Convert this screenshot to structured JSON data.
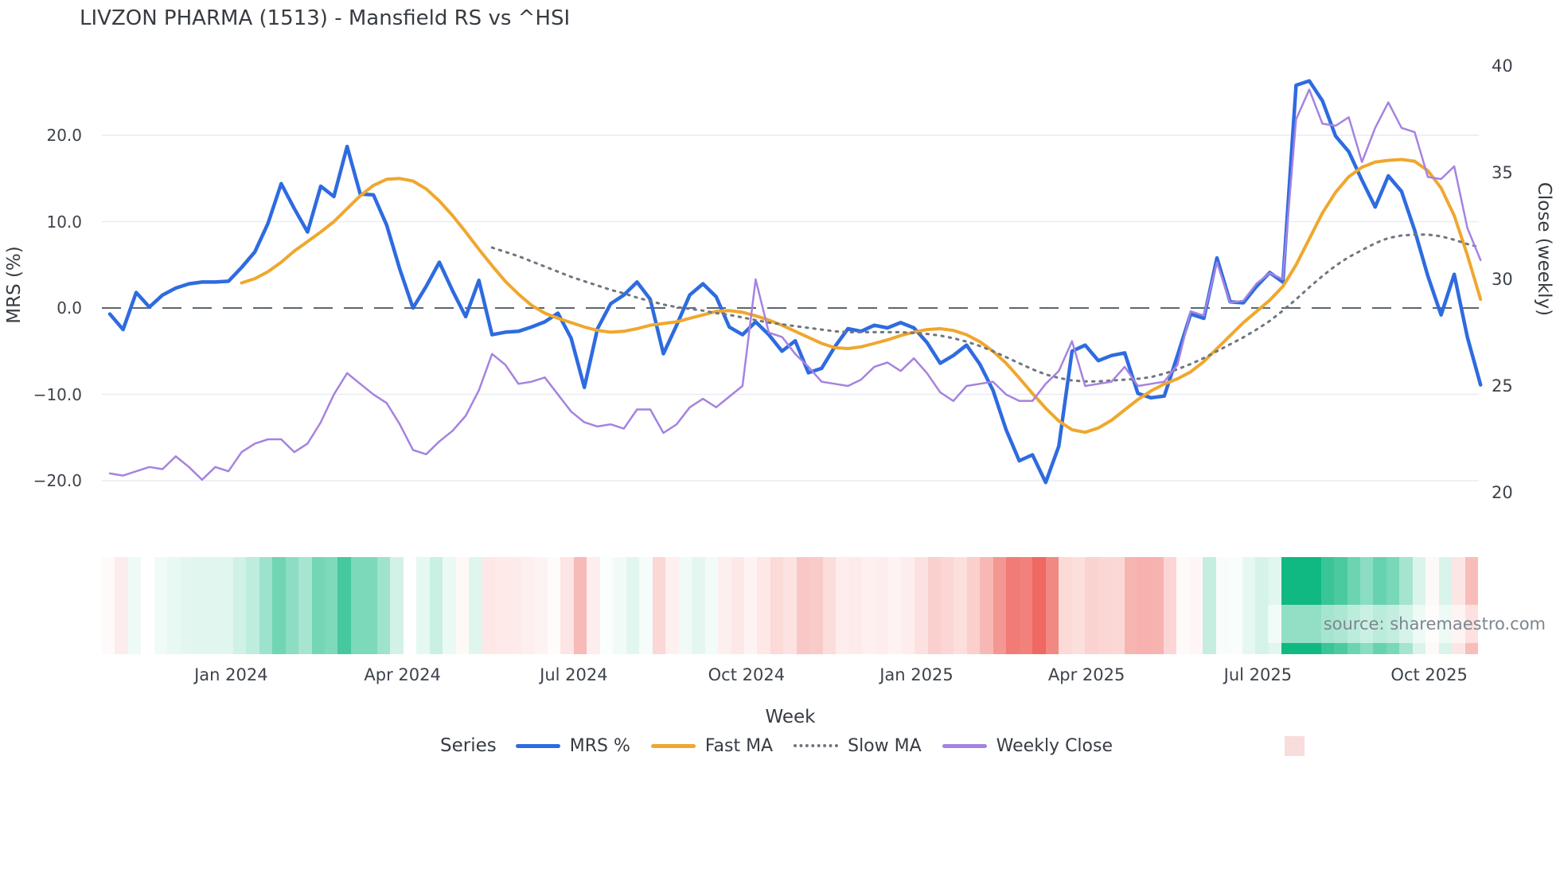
{
  "title": "LIVZON PHARMA (1513) - Mansfield RS vs ^HSI",
  "source_text": "source: sharemaestro.com",
  "axes": {
    "left": {
      "label": "MRS (%)",
      "ticks": [
        {
          "label": "20.0",
          "value": 20
        },
        {
          "label": "10.0",
          "value": 10
        },
        {
          "label": "0.0",
          "value": 0
        },
        {
          "label": "−10.0",
          "value": -10
        },
        {
          "label": "−20.0",
          "value": -20
        }
      ]
    },
    "right": {
      "label": "Close (weekly)",
      "ticks": [
        {
          "label": "40",
          "value": 40
        },
        {
          "label": "35",
          "value": 35
        },
        {
          "label": "30",
          "value": 30
        },
        {
          "label": "25",
          "value": 25
        },
        {
          "label": "20",
          "value": 20
        }
      ]
    },
    "x": {
      "label": "Week",
      "ticks": [
        {
          "label": "Jan 2024",
          "index": 9.2
        },
        {
          "label": "Apr 2024",
          "index": 22.2
        },
        {
          "label": "Jul 2024",
          "index": 35.2
        },
        {
          "label": "Oct 2024",
          "index": 48.3
        },
        {
          "label": "Jan 2025",
          "index": 61.2
        },
        {
          "label": "Apr 2025",
          "index": 74.1
        },
        {
          "label": "Jul 2025",
          "index": 87.1
        },
        {
          "label": "Oct 2025",
          "index": 100.1
        }
      ]
    }
  },
  "legend": {
    "heading": "Series",
    "items": [
      {
        "label": "MRS %",
        "color": "#2e6be0",
        "style": "solid"
      },
      {
        "label": "Fast MA",
        "color": "#efa72e",
        "style": "solid"
      },
      {
        "label": "Slow MA",
        "color": "#6f7680",
        "style": "dotted"
      },
      {
        "label": "Weekly Close",
        "color": "#a583e0",
        "style": "solid"
      }
    ],
    "extra_swatch_color": "#f9dcdc"
  },
  "colors": {
    "grid": "#e9ecf2",
    "zero_line": "#5c6670",
    "heatmap_positive": "#10b981",
    "heatmap_negative": "#ec4c44",
    "text_dark": "#373c42",
    "text_tick": "#3d434b",
    "source_gray": "#7d868e"
  },
  "chart_data": {
    "type": "line",
    "title": "LIVZON PHARMA (1513) - Mansfield RS vs ^HSI",
    "xlabel": "Week",
    "ylabel_left": "MRS (%)",
    "ylabel_right": "Close (weekly)",
    "x_unit": "week_index",
    "n_points": 105,
    "left_axis_range": [
      -22,
      28
    ],
    "right_axis_range": [
      19.5,
      40.5
    ],
    "grid": true,
    "legend_position": "bottom",
    "series": [
      {
        "name": "MRS %",
        "axis": "left",
        "color": "#2e6be0",
        "style": "solid",
        "width": 4.5,
        "values": [
          -0.7,
          -2.5,
          1.8,
          0.1,
          1.5,
          2.3,
          2.8,
          3.0,
          3.0,
          3.1,
          4.7,
          6.5,
          9.8,
          14.4,
          11.5,
          8.8,
          14.1,
          12.9,
          18.7,
          13.2,
          13.1,
          9.6,
          4.5,
          0.0,
          2.5,
          5.3,
          2.0,
          -1.0,
          3.2,
          -3.1,
          -2.8,
          -2.7,
          -2.2,
          -1.6,
          -0.6,
          -3.5,
          -9.2,
          -2.4,
          0.5,
          1.5,
          3.0,
          1.0,
          -5.3,
          -2.0,
          1.5,
          2.8,
          1.3,
          -2.2,
          -3.1,
          -1.6,
          -3.1,
          -5.0,
          -3.8,
          -7.5,
          -7.0,
          -4.5,
          -2.4,
          -2.7,
          -2.0,
          -2.3,
          -1.7,
          -2.3,
          -4.0,
          -6.4,
          -5.5,
          -4.3,
          -6.5,
          -9.5,
          -14.1,
          -17.7,
          -17.0,
          -20.2,
          -16.0,
          -5.0,
          -4.3,
          -6.1,
          -5.5,
          -5.2,
          -9.9,
          -10.4,
          -10.2,
          -5.5,
          -0.7,
          -1.2,
          5.8,
          0.7,
          0.6,
          2.5,
          4.1,
          3.0,
          25.8,
          26.3,
          24.0,
          19.9,
          18.1,
          14.8,
          11.7,
          15.3,
          13.5,
          9.0,
          3.7,
          -0.8,
          3.9,
          -3.4,
          -8.9
        ]
      },
      {
        "name": "Fast MA",
        "axis": "left",
        "color": "#efa72e",
        "style": "solid",
        "width": 4,
        "values": [
          null,
          null,
          null,
          null,
          null,
          null,
          null,
          null,
          null,
          null,
          2.9,
          3.4,
          4.2,
          5.3,
          6.6,
          7.7,
          8.8,
          10.0,
          11.5,
          13.0,
          14.2,
          14.9,
          15.0,
          14.7,
          13.8,
          12.4,
          10.7,
          8.8,
          6.8,
          4.9,
          3.1,
          1.6,
          0.3,
          -0.6,
          -1.2,
          -1.7,
          -2.2,
          -2.6,
          -2.8,
          -2.7,
          -2.4,
          -2.0,
          -1.8,
          -1.6,
          -1.2,
          -0.8,
          -0.4,
          -0.3,
          -0.5,
          -0.9,
          -1.4,
          -2.0,
          -2.7,
          -3.4,
          -4.1,
          -4.6,
          -4.7,
          -4.5,
          -4.1,
          -3.7,
          -3.2,
          -2.8,
          -2.5,
          -2.4,
          -2.6,
          -3.1,
          -3.9,
          -5.0,
          -6.4,
          -8.1,
          -9.9,
          -11.6,
          -13.1,
          -14.1,
          -14.4,
          -13.9,
          -13.0,
          -11.8,
          -10.6,
          -9.6,
          -8.8,
          -8.2,
          -7.4,
          -6.2,
          -4.7,
          -3.2,
          -1.7,
          -0.4,
          0.9,
          2.5,
          5.0,
          8.0,
          11.0,
          13.4,
          15.2,
          16.3,
          16.9,
          17.1,
          17.2,
          17.0,
          15.9,
          13.9,
          10.7,
          6.1,
          1.0
        ]
      },
      {
        "name": "Slow MA",
        "axis": "left",
        "color": "#6f7680",
        "style": "dotted",
        "width": 3,
        "values": [
          null,
          null,
          null,
          null,
          null,
          null,
          null,
          null,
          null,
          null,
          null,
          null,
          null,
          null,
          null,
          null,
          null,
          null,
          null,
          null,
          null,
          null,
          null,
          null,
          null,
          null,
          null,
          null,
          null,
          7.0,
          6.5,
          6.0,
          5.4,
          4.8,
          4.2,
          3.6,
          3.1,
          2.6,
          2.1,
          1.7,
          1.2,
          0.8,
          0.4,
          0.1,
          -0.1,
          -0.3,
          -0.6,
          -0.8,
          -1.1,
          -1.4,
          -1.7,
          -1.9,
          -2.1,
          -2.3,
          -2.5,
          -2.7,
          -2.8,
          -2.8,
          -2.8,
          -2.8,
          -2.8,
          -2.9,
          -3.0,
          -3.2,
          -3.5,
          -3.9,
          -4.4,
          -5.0,
          -5.7,
          -6.4,
          -7.1,
          -7.7,
          -8.1,
          -8.4,
          -8.5,
          -8.5,
          -8.4,
          -8.3,
          -8.2,
          -8.0,
          -7.6,
          -7.1,
          -6.5,
          -5.8,
          -5.0,
          -4.2,
          -3.4,
          -2.5,
          -1.5,
          -0.3,
          1.0,
          2.4,
          3.7,
          4.9,
          5.9,
          6.7,
          7.5,
          8.1,
          8.4,
          8.5,
          8.5,
          8.3,
          7.9,
          7.4,
          7.0
        ]
      },
      {
        "name": "Weekly Close",
        "axis": "right",
        "color": "#a583e0",
        "style": "solid",
        "width": 2.5,
        "values": [
          20.9,
          20.8,
          21.0,
          21.2,
          21.1,
          21.7,
          21.2,
          20.6,
          21.2,
          21.0,
          21.9,
          22.3,
          22.5,
          22.5,
          21.9,
          22.3,
          23.3,
          24.6,
          25.6,
          25.1,
          24.6,
          24.2,
          23.2,
          22.0,
          21.8,
          22.4,
          22.9,
          23.6,
          24.8,
          26.5,
          26.0,
          25.1,
          25.2,
          25.4,
          24.6,
          23.8,
          23.3,
          23.1,
          23.2,
          23.0,
          23.9,
          23.9,
          22.8,
          23.2,
          24.0,
          24.4,
          24.0,
          24.5,
          25.0,
          30.0,
          27.5,
          27.3,
          26.5,
          25.9,
          25.2,
          25.1,
          25.0,
          25.3,
          25.9,
          26.1,
          25.7,
          26.3,
          25.6,
          24.7,
          24.3,
          25.0,
          25.1,
          25.2,
          24.6,
          24.3,
          24.3,
          25.1,
          25.7,
          27.1,
          25.0,
          25.1,
          25.2,
          25.9,
          25.0,
          25.1,
          25.2,
          26.0,
          28.5,
          28.3,
          30.8,
          28.9,
          29.0,
          29.8,
          30.3,
          30.0,
          37.5,
          38.9,
          37.3,
          37.2,
          37.6,
          35.5,
          37.1,
          38.3,
          37.1,
          36.9,
          34.8,
          34.7,
          35.3,
          32.4,
          30.9
        ]
      }
    ],
    "heatmap": {
      "source_series": "MRS %",
      "positive_color": "#10b981",
      "negative_color": "#ec4c44",
      "max_abs": 24
    }
  }
}
